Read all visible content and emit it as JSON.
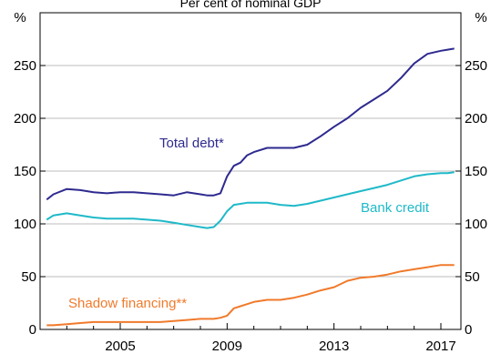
{
  "chart_data": {
    "type": "line",
    "title": "Per cent of nominal GDP",
    "y_unit_left": "%",
    "y_unit_right": "%",
    "ylim": [
      0,
      300
    ],
    "y_ticks": [
      0,
      50,
      100,
      150,
      200,
      250,
      300
    ],
    "y_tick_labels": [
      "0",
      "50",
      "100",
      "150",
      "200",
      "250",
      ""
    ],
    "xlim": [
      2002.0,
      2017.75
    ],
    "x_ticks": [
      2005,
      2009,
      2013,
      2017
    ],
    "x_tick_labels": [
      "2005",
      "2009",
      "2013",
      "2017"
    ],
    "grid": true,
    "legend": "inline labels",
    "series": [
      {
        "name": "Total debt*",
        "color": "#2e2a8f",
        "x": [
          2002.25,
          2002.5,
          2003.0,
          2003.5,
          2004.0,
          2004.5,
          2005.0,
          2005.5,
          2006.0,
          2006.5,
          2007.0,
          2007.5,
          2008.0,
          2008.25,
          2008.5,
          2008.75,
          2009.0,
          2009.25,
          2009.5,
          2009.75,
          2010.0,
          2010.5,
          2011.0,
          2011.5,
          2012.0,
          2012.5,
          2013.0,
          2013.5,
          2014.0,
          2014.5,
          2015.0,
          2015.5,
          2016.0,
          2016.5,
          2017.0,
          2017.25,
          2017.5
        ],
        "values": [
          123,
          128,
          133,
          132,
          130,
          129,
          130,
          130,
          129,
          128,
          127,
          130,
          128,
          127,
          127,
          129,
          145,
          155,
          158,
          165,
          168,
          172,
          172,
          172,
          175,
          183,
          192,
          200,
          210,
          218,
          226,
          238,
          252,
          261,
          264,
          265,
          266
        ]
      },
      {
        "name": "Bank credit",
        "color": "#1fb9c9",
        "x": [
          2002.25,
          2002.5,
          2003.0,
          2003.5,
          2004.0,
          2004.5,
          2005.0,
          2005.5,
          2006.0,
          2006.5,
          2007.0,
          2007.5,
          2008.0,
          2008.25,
          2008.5,
          2008.75,
          2009.0,
          2009.25,
          2009.5,
          2009.75,
          2010.0,
          2010.5,
          2011.0,
          2011.5,
          2012.0,
          2012.5,
          2013.0,
          2013.5,
          2014.0,
          2014.5,
          2015.0,
          2015.5,
          2016.0,
          2016.5,
          2017.0,
          2017.25,
          2017.5
        ],
        "values": [
          104,
          108,
          110,
          108,
          106,
          105,
          105,
          105,
          104,
          103,
          101,
          99,
          97,
          96,
          97,
          103,
          112,
          118,
          119,
          120,
          120,
          120,
          118,
          117,
          119,
          122,
          125,
          128,
          131,
          134,
          137,
          141,
          145,
          147,
          148,
          148,
          149
        ]
      },
      {
        "name": "Shadow financing**",
        "color": "#f07a2b",
        "x": [
          2002.25,
          2002.5,
          2003.0,
          2003.5,
          2004.0,
          2004.5,
          2005.0,
          2005.5,
          2006.0,
          2006.5,
          2007.0,
          2007.5,
          2008.0,
          2008.25,
          2008.5,
          2008.75,
          2009.0,
          2009.25,
          2009.5,
          2009.75,
          2010.0,
          2010.5,
          2011.0,
          2011.5,
          2012.0,
          2012.5,
          2013.0,
          2013.5,
          2014.0,
          2014.5,
          2015.0,
          2015.5,
          2016.0,
          2016.5,
          2017.0,
          2017.25,
          2017.5
        ],
        "values": [
          4,
          4,
          5,
          6,
          7,
          7,
          7,
          7,
          7,
          7,
          8,
          9,
          10,
          10,
          10,
          11,
          13,
          20,
          22,
          24,
          26,
          28,
          28,
          30,
          33,
          37,
          40,
          46,
          49,
          50,
          52,
          55,
          57,
          59,
          61,
          61,
          61
        ]
      }
    ]
  }
}
